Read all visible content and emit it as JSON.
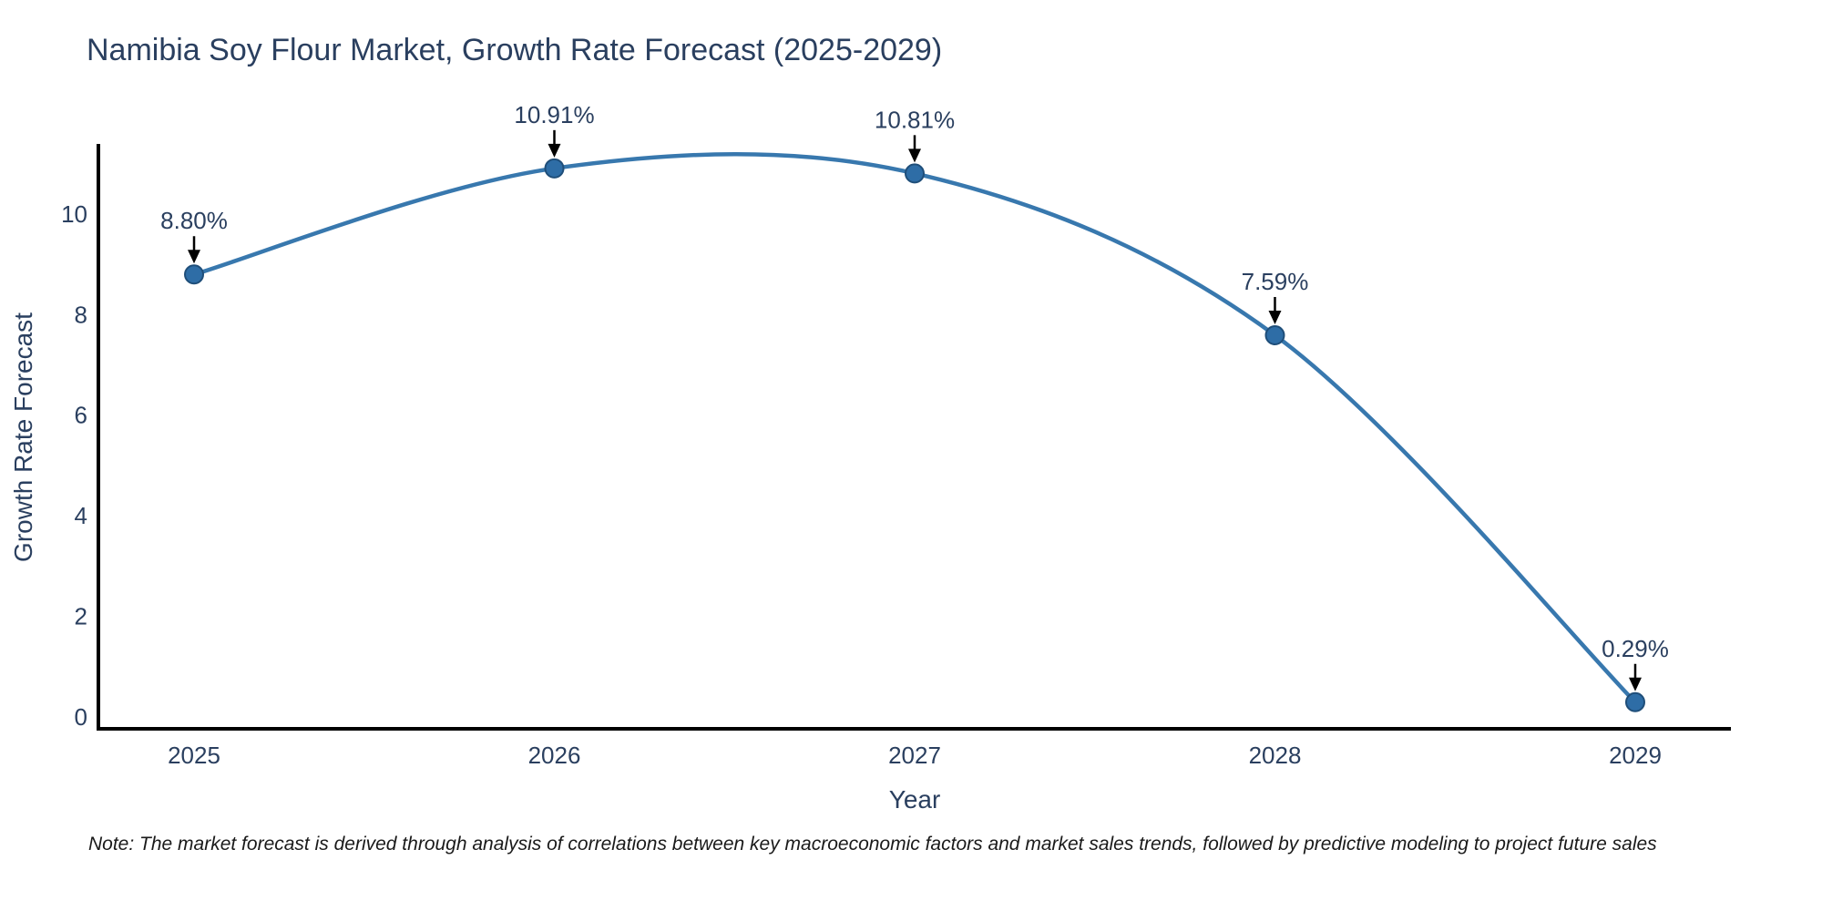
{
  "note": "Note: The market forecast is derived through analysis of correlations between key macroeconomic factors and market sales trends, followed by predictive modeling to project future sales",
  "chart_data": {
    "type": "line",
    "title": "Namibia Soy Flour Market, Growth Rate Forecast (2025-2029)",
    "xlabel": "Year",
    "ylabel": "Growth Rate Forecast",
    "x": [
      "2025",
      "2026",
      "2027",
      "2028",
      "2029"
    ],
    "values": [
      8.8,
      10.91,
      10.81,
      7.59,
      0.29
    ],
    "point_labels": [
      "8.80%",
      "10.91%",
      "10.81%",
      "7.59%",
      "0.29%"
    ],
    "yticks": [
      0,
      2,
      4,
      6,
      8,
      10
    ],
    "ylim": [
      -0.24,
      11.36
    ],
    "line_shape": "spline",
    "markers": true,
    "grid": false,
    "legend": false,
    "annotations_arrows": true,
    "colors": {
      "line": "#3878ae",
      "marker_fill": "#2e6da6",
      "marker_edge": "#1f4e79",
      "text": "#2a3f5f",
      "axis": "#000000",
      "arrow": "#000000"
    }
  }
}
